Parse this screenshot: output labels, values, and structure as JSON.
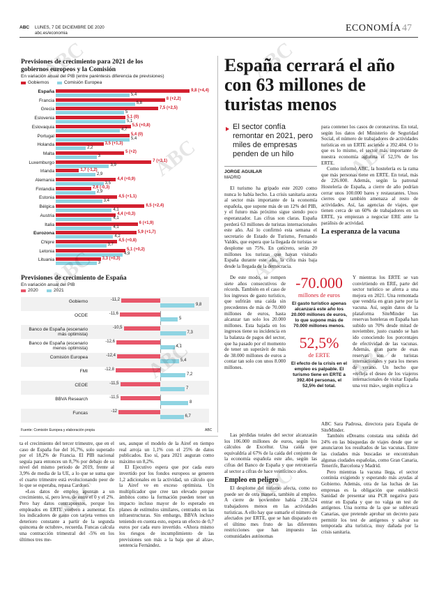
{
  "header": {
    "brand": "ABC",
    "date": "LUNES, 7 DE DICIEMBRE DE 2020",
    "url": "abc.es/economia",
    "section": "ECONOMÍA",
    "page": "47"
  },
  "watermark": "ABC",
  "chart_data": [
    {
      "type": "bar",
      "orientation": "horizontal",
      "title": "Previsiones de crecimiento para 2021 de los gobiernos europeos y la Comisión",
      "subtitle": "En variación anual del PIB (entre paréntesis diferencia de previsiones)",
      "categories": [
        "España",
        "Francia",
        "Grecia",
        "Eslovenia",
        "Eslovaquia",
        "Portugal",
        "Holanda",
        "Malta",
        "Luxemburgo",
        "Irlanda",
        "Alemania",
        "Finlandia",
        "Estonia",
        "Bélgica",
        "Austria",
        "Italia",
        "Eurozona",
        "Chipre",
        "Letonia",
        "Lituania"
      ],
      "bold_categories": [
        0,
        16
      ],
      "series": [
        {
          "name": "Gobiernos",
          "color": "#d3202f",
          "values": [
            9.8,
            8,
            7.5,
            5.1,
            5.5,
            5.4,
            3.5,
            5,
            7,
            1.7,
            4.4,
            2.6,
            4.5,
            6.5,
            4.4,
            6,
            5.9,
            4.5,
            5.1,
            3.3
          ],
          "value_labels": [
            "9,8 (+4,4)",
            "8 (+2,2)",
            "7,5 (+2,5)",
            "5,1 (0)",
            "5,5 (+0,8)",
            "5,4 (0)",
            "3,5 (+1,3)",
            "5 (+2)",
            "7 (+3,1)",
            "1,7 (-1,2)",
            "4,4 (+0,9)",
            "2,6 (-0,3)",
            "4,5 (+1,1)",
            "6,5 (+2,4)",
            "4,4 (+0,3)",
            "6 (+1,9)",
            "5,9 (+1,7)",
            "4,5 (+0,8)",
            "5,1 (+0,2)",
            "3,3 (+0,3)"
          ]
        },
        {
          "name": "Comisión Europea",
          "color": "#8fd4e2",
          "values": [
            5.4,
            5.8,
            5,
            5.1,
            4.7,
            5.4,
            2.2,
            3,
            3.9,
            2.9,
            3.5,
            2.9,
            3.4,
            4.1,
            4.1,
            4.1,
            4.2,
            3.7,
            4.9,
            3
          ],
          "value_labels": [
            "5,4",
            "5,8",
            "5",
            "5,1",
            "4,7",
            "5,4",
            "2,2",
            "3",
            "3,9",
            "2,9",
            "3,5",
            "2,9",
            "3,4",
            "4,1",
            "4,1",
            "4,1",
            "4,2",
            "3,7",
            "4,9",
            "3"
          ]
        }
      ]
    },
    {
      "type": "bar",
      "orientation": "horizontal",
      "title": "Previsiones de crecimiento de España",
      "subtitle": "En variación anual del PIB",
      "categories": [
        "Gobierno",
        "OCDE",
        "Banco de España (escenario más optimista)",
        "Banco de España (escenario menos optimista)",
        "Comisión Europea",
        "FMI",
        "CEOE",
        "BBVA Research",
        "Funcas"
      ],
      "series": [
        {
          "name": "2020",
          "color": "#e8566a",
          "values": [
            -11.2,
            -11.6,
            -10.5,
            -12.6,
            -12.4,
            -12.8,
            -11.5,
            -11.5,
            -12
          ],
          "value_labels": [
            "-11,2",
            "-11,6",
            "-10,5",
            "-12,6",
            "-12,4",
            "-12,8",
            "-11,5",
            "-11,5",
            "-12"
          ]
        },
        {
          "name": "2021",
          "color": "#8fd4e2",
          "values": [
            9.8,
            5,
            7.3,
            4.1,
            5.4,
            7.2,
            7,
            8,
            6.7
          ],
          "value_labels": [
            "9,8",
            "5",
            "7,3",
            "4,1",
            "5,4",
            "7,2",
            "7",
            "8",
            "6,7"
          ]
        }
      ],
      "source": "Fuente: Comisión Europea y elaboración propia",
      "credit": "ABC"
    }
  ],
  "left_article": {
    "col1": [
      "ta el crecimiento del tercer trimestre, que en el caso de España fue del 16,7%, solo superado por el 18,2% de Francia. El PIB nacional seguía para entonces un 8,7% por debajo de su nivel del mismo periodo de 2019, frente al 3,9% de media de la UE, a lo que se suma que el cuarto trimestre está evolucionando peor de lo que se esperaba, repasa Cardoso.",
      "«Los datos de empleo apuntan a un crecimiento, sí, pero leve, de entre el 0 y el 2%. Pero hay datos contrapuestos, porque los empleados en ERTE vuelven a aumentar. En los indicadores de gasto con tarjeta vemos un deterioro constante a partir de la segunda quincena de octubre», recuerda. Funcas calcula una contracción trimestral del -5% en los últimos tres me-"
    ],
    "col2": [
      "ses, aunque el modelo de la Airef en tiempo real arroja un 1,1% con el 25% de datos publicados. Eso sí, para 2021 auguran como máximo un 8,2%.",
      "El Ejecutivo espera que por cada euro invertido por los fondos europeos se generen 1,2 adicionales en la actividad, un cálculo que la Airef ve en exceso optimista. Un multiplicador que cree tan elevado porque ámbitos como la formación pueden tener un impacto incluso mayor de lo esperado en planes de estímulos similares, centrados en las infraestructuras. Sin embargo, BBVA incluso teniendo en cuenta esto, espera un efecto de 0,7 euros por cada euro invertido. «Ahora mismo los riesgos de incumplimiento de las previsiones son más a la baja que al alza», sentencia Fernández."
    ]
  },
  "article": {
    "headline": "España cerrará el año con 63 millones de turistas menos",
    "subhead": "El sector confía remontar en 2021, pero miles de empresas penden de un hilo",
    "author": "JORGE AGUILAR",
    "place": "MADRID",
    "left_a": [
      "El turismo ha gripado este 2020 como nunca lo había hecho. La crisis sanitaria azota al sector más importante de la economía española, que supone más de un 12% del PIB, y el futuro más próximo sigue siendo poco esperanzador. Las cifras son claras. España perderá 63 millones de turistas internacionales este año. Así lo confirmó esta semana el secretario de Estado de Turismo, Fernando Valdés, que espera que la llegada de turistas se desplome un 75%. En concreto, serán 20 millones los turistas que hayan visitado España durante este año, la cifra más baja desde la llegada de la democracia."
    ],
    "left_b": [
      "De este modo, se rompen siete años consecutivos de récords. También en el caso de los ingresos de gasto turístico, que sufrirán una caída sin precedentes de más de 70.000 millones de euros, hasta alcanzar tan solo los 20.000 millones. Esta bajada en los ingresos tiene su incidencia en la balanza de pagos del sector, que ha pasado por el momento de tener un superávit de más de 38.000 millones de euros a contar tan solo con unos 8.000 millones."
    ],
    "left_c": [
      "Las pérdidas totales del sector alcanzarán los 106.000 millones de euros, según los cálculos de Exceltur. Una caída que equivaldría al 67% de la caída del conjunto de la economía española este año, según las cifras del Banco de España y que retrotraería al sector a cifras de hace veinticinco años."
    ],
    "heading_1": "Empleo en peligro",
    "left_d": [
      "El desplome del turismo afecta, como no puede ser de otra manera, también al empleo. A cierre de noviembre había 238.524 trabajadores menos en las actividades turísticas. A ello hay que sumarle el número de afectados por ERTE, que se han disparado en el último mes fruto de las diferentes restricciones que han impuesto las comunidades autónomas"
    ],
    "right_a": [
      "para contener los casos de coronavirus. En total, según los datos del Ministerio de Seguridad Social, el número de trabajadores de actividades turísticas en un ERTE asciende a 392.404. O lo que es lo mismo, el sector más importante de nuestra economía aglutina el 52,5% de los ERTE.",
      "Como informó ABC, la hostelería es la rama que más personas tiene en ERTE. En total, más de 226.000. Además, según la patronal Hostelería de España, a cierre de año podrían cerrar unos 100.000 bares y restaurantes. Unos cierres que también amenaza al resto de actividades. Así, las agencias de viajes, que tienen cerca de un 60% de trabajadores en un ERTE, ya empiezan a negociar ERE ante la parálisis de actividad."
    ],
    "heading_2": "La esperanza de la vacuna",
    "right_b": [
      "Y mientras los ERTE se van convirtiendo en ERE, parte del sector turístico se aferra a una mejora en 2021. Una remontada que vendría en gran parte por la vacuna. Así, según datos de la plataforma SiteMinder las reservas hoteleras en España han subido un 70% desde mitad de noviembre, justo cuando se han ido conociendo los porcentajes de efectividad de las vacunas. Además, gran parte de esas reservas son de turistas internacionales y para los meses de verano. Un hecho que «refleja el deseo de los viajeros internacionales de visitar España una vez más», según explica a"
    ],
    "right_c": [
      "ABC Sara Padrosa, directora para España de SiteMinder.",
      "También eDreams constata una subida del 24% en las búsquedas de viajes desde que se anunciaron los resultados de las vacunas. Entre las ciudades más buscadas se encontraban algunas ciudades españolas, como Gran Canaria, Tenerife, Barcelona y Madrid.",
      "Pero mientras la vacuna llega, el sector continúa exigiendo y esperando más ayudas al Gobierno. Además, otra de las luchas de las empresas es la obligación que estableció Sanidad de presentar una PCR negativa para entrar en España y que no valga un test de antígenos. Una norma de la que se sublevará Canarias, que pretende aprobar un decreto para permitir los test de antígenos y salvar su temporada alta turística, muy dañada por la crisis sanitaria."
    ],
    "stats": [
      {
        "figure": "-70.000",
        "unit": "millones de euros",
        "text": "El gasto turístico apenas alcanzará este año los 20.000 millones de euros, lo que supone más de 70.000 millones menos."
      },
      {
        "figure": "52,5%",
        "unit": "de ERTE",
        "text": "El efecto de la crisis en el empleo es palpable. El turismo tiene en ERTE a 392.404 personas, el 52,5% del total."
      }
    ]
  }
}
